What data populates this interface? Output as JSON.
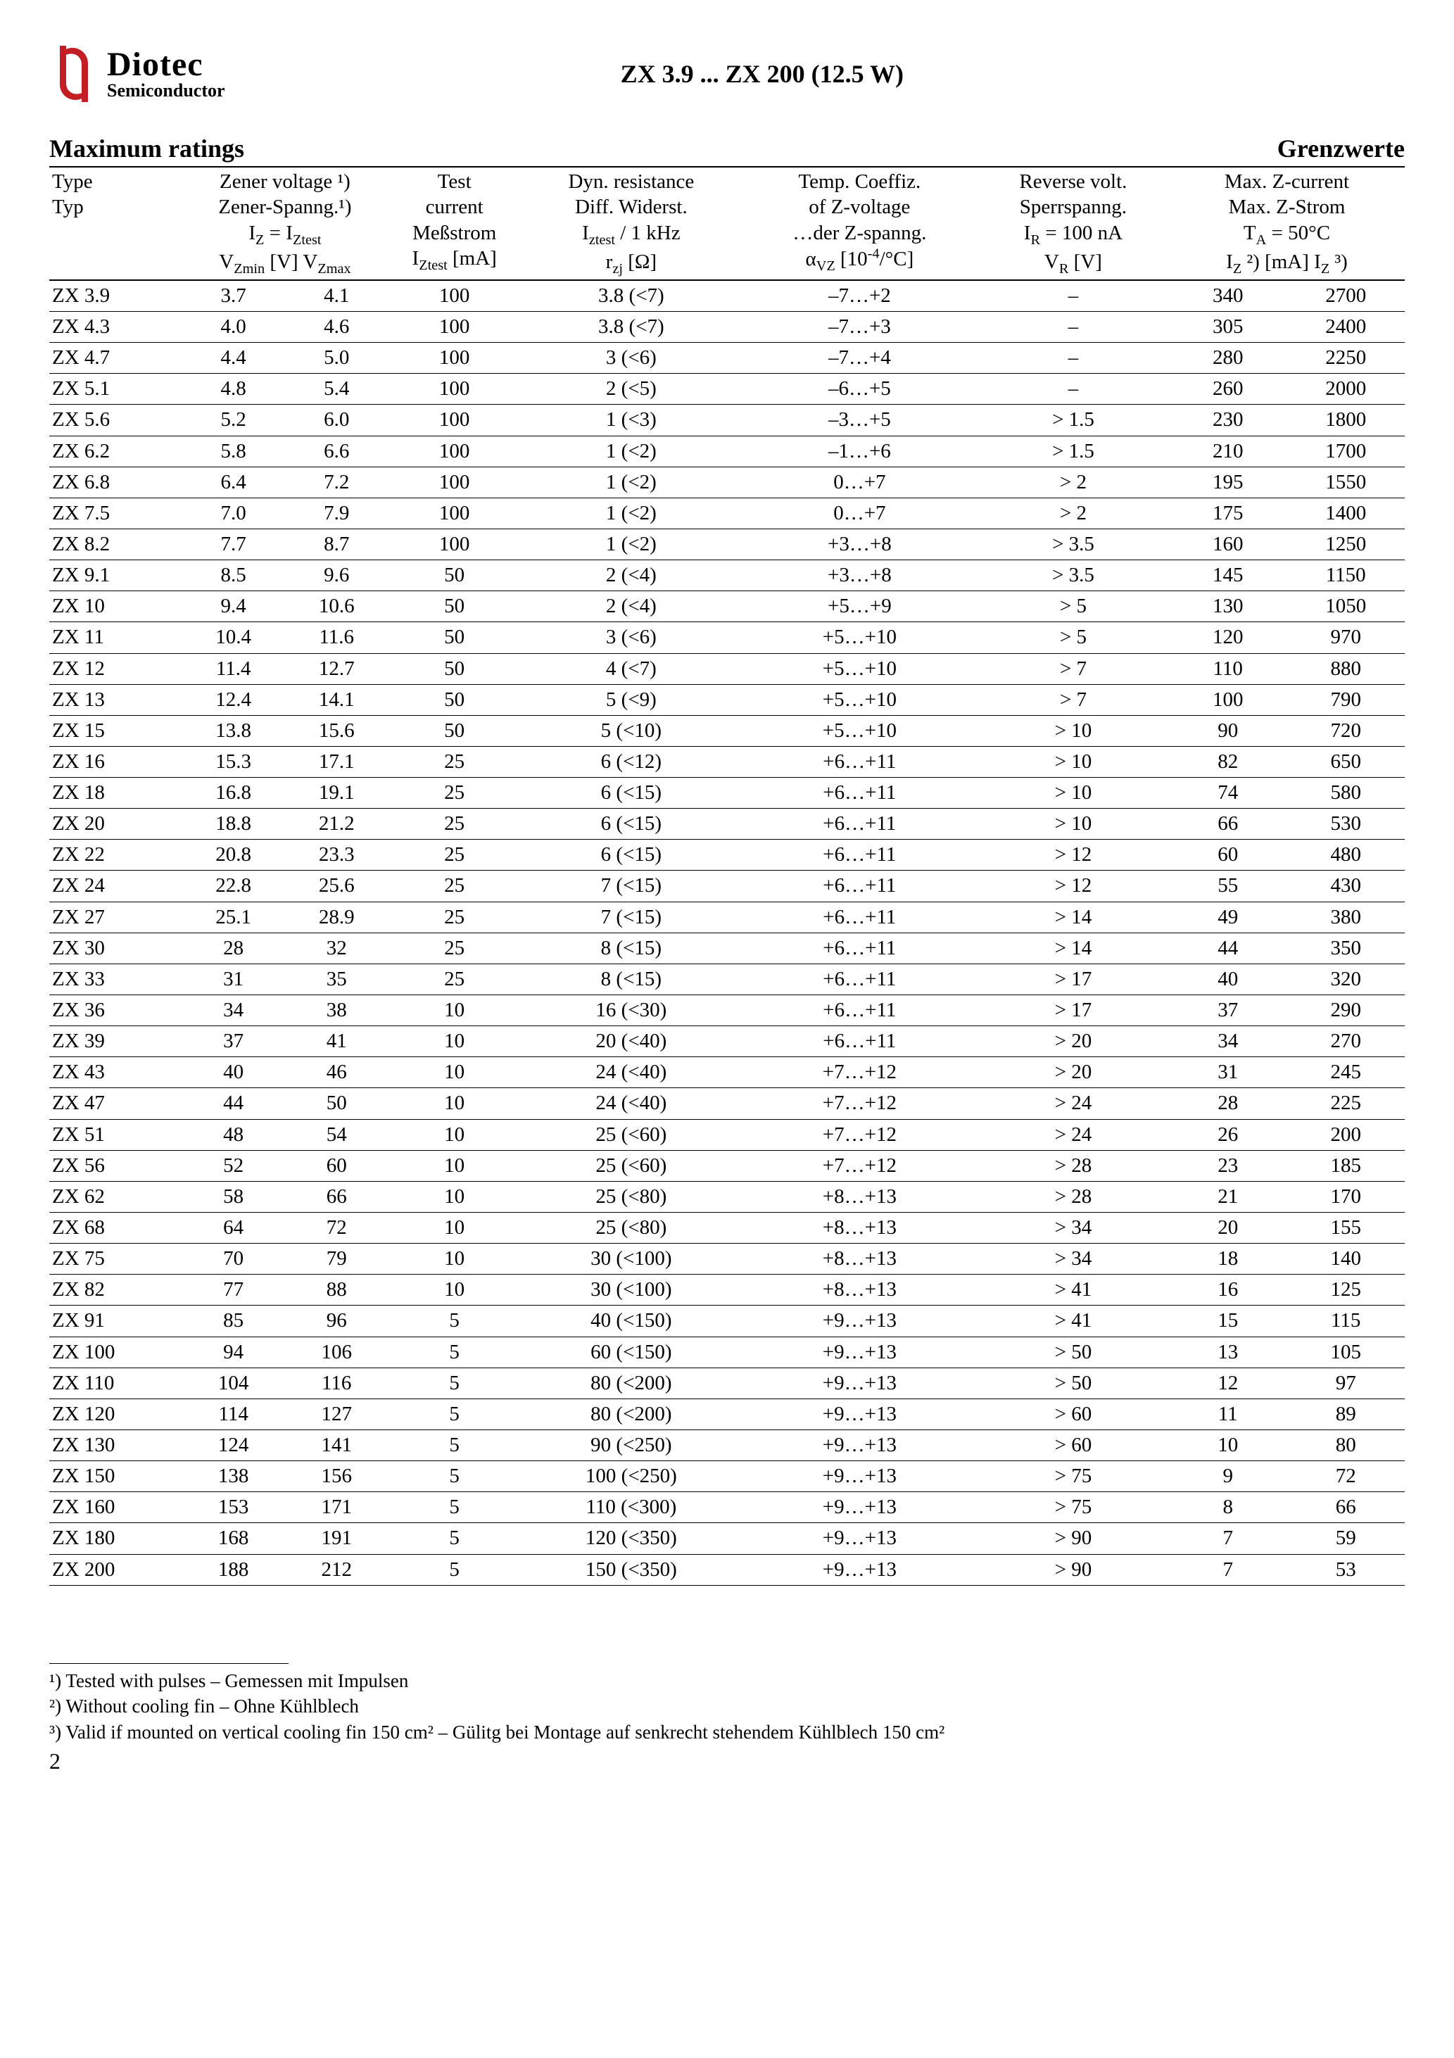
{
  "logo": {
    "brand": "Diotec",
    "sub": "Semiconductor"
  },
  "doc_title": "ZX 3.9 ... ZX 200 (12.5 W)",
  "heading_left": "Maximum ratings",
  "heading_right": "Grenzwerte",
  "header": {
    "type1": "Type",
    "type2": "Typ",
    "zv1": "Zener voltage ¹)",
    "zv2": "Zener-Spanng.¹)",
    "zv3": "I",
    "zv3sub1": "Z",
    "zv3mid": " = I",
    "zv3sub2": "Ztest",
    "zvmin": "V",
    "zvminsub": "Zmin",
    "zvunit": " [V] ",
    "zvmax": "V",
    "zvmaxsub": "Zmax",
    "tc1": "Test",
    "tc2": "current",
    "tc3": "Meßstrom",
    "tc4": "I",
    "tc4sub": "Ztest",
    "tc4unit": " [mA]",
    "dr1": "Dyn. resistance",
    "dr2": "Diff. Widerst.",
    "dr3": "I",
    "dr3sub": "ztest",
    "dr3mid": " / 1 kHz",
    "dr4": "r",
    "dr4sub": "zj",
    "dr4unit": " [Ω]",
    "tco1": "Temp. Coeffiz.",
    "tco2": "of Z-voltage",
    "tco3": "…der Z-spanng.",
    "tco4": "α",
    "tco4sub": "VZ",
    "tco4unit": " [10",
    "tco4exp": "-4",
    "tco4unit2": "/°C]",
    "rv1": "Reverse volt.",
    "rv2": "Sperrspanng.",
    "rv3": "I",
    "rv3sub": "R",
    "rv3mid": " = 100 nA",
    "rv4": "V",
    "rv4sub": "R",
    "rv4unit": " [V]",
    "mz1": "Max. Z-current",
    "mz2": "Max. Z-Strom",
    "mz3": "T",
    "mz3sub": "A",
    "mz3mid": " = 50°C",
    "mz4a": "I",
    "mz4asub": "Z",
    "mz4aexp": " ²)",
    "mz4unit": " [mA] ",
    "mz4b": "I",
    "mz4bsub": "Z",
    "mz4bexp": " ³)"
  },
  "rows": [
    {
      "t": "ZX 3.9",
      "vmin": "3.7",
      "vmax": "4.1",
      "iz": "100",
      "r": "3.8 (<7)",
      "a": "–7…+2",
      "vr": "–",
      "i2": "340",
      "i3": "2700"
    },
    {
      "t": "ZX 4.3",
      "vmin": "4.0",
      "vmax": "4.6",
      "iz": "100",
      "r": "3.8 (<7)",
      "a": "–7…+3",
      "vr": "–",
      "i2": "305",
      "i3": "2400"
    },
    {
      "t": "ZX 4.7",
      "vmin": "4.4",
      "vmax": "5.0",
      "iz": "100",
      "r": "3 (<6)",
      "a": "–7…+4",
      "vr": "–",
      "i2": "280",
      "i3": "2250"
    },
    {
      "t": "ZX 5.1",
      "vmin": "4.8",
      "vmax": "5.4",
      "iz": "100",
      "r": "2 (<5)",
      "a": "–6…+5",
      "vr": "–",
      "i2": "260",
      "i3": "2000"
    },
    {
      "t": "ZX 5.6",
      "vmin": "5.2",
      "vmax": "6.0",
      "iz": "100",
      "r": "1 (<3)",
      "a": "–3…+5",
      "vr": "> 1.5",
      "i2": "230",
      "i3": "1800"
    },
    {
      "t": "ZX 6.2",
      "vmin": "5.8",
      "vmax": "6.6",
      "iz": "100",
      "r": "1 (<2)",
      "a": "–1…+6",
      "vr": "> 1.5",
      "i2": "210",
      "i3": "1700"
    },
    {
      "t": "ZX 6.8",
      "vmin": "6.4",
      "vmax": "7.2",
      "iz": "100",
      "r": "1 (<2)",
      "a": "0…+7",
      "vr": "> 2",
      "i2": "195",
      "i3": "1550"
    },
    {
      "t": "ZX 7.5",
      "vmin": "7.0",
      "vmax": "7.9",
      "iz": "100",
      "r": "1 (<2)",
      "a": "0…+7",
      "vr": "> 2",
      "i2": "175",
      "i3": "1400"
    },
    {
      "t": "ZX 8.2",
      "vmin": "7.7",
      "vmax": "8.7",
      "iz": "100",
      "r": "1 (<2)",
      "a": "+3…+8",
      "vr": "> 3.5",
      "i2": "160",
      "i3": "1250"
    },
    {
      "t": "ZX 9.1",
      "vmin": "8.5",
      "vmax": "9.6",
      "iz": "50",
      "r": "2 (<4)",
      "a": "+3…+8",
      "vr": "> 3.5",
      "i2": "145",
      "i3": "1150"
    },
    {
      "t": "ZX 10",
      "vmin": "9.4",
      "vmax": "10.6",
      "iz": "50",
      "r": "2 (<4)",
      "a": "+5…+9",
      "vr": "> 5",
      "i2": "130",
      "i3": "1050"
    },
    {
      "t": "ZX 11",
      "vmin": "10.4",
      "vmax": "11.6",
      "iz": "50",
      "r": "3 (<6)",
      "a": "+5…+10",
      "vr": "> 5",
      "i2": "120",
      "i3": "970"
    },
    {
      "t": "ZX 12",
      "vmin": "11.4",
      "vmax": "12.7",
      "iz": "50",
      "r": "4 (<7)",
      "a": "+5…+10",
      "vr": "> 7",
      "i2": "110",
      "i3": "880"
    },
    {
      "t": "ZX 13",
      "vmin": "12.4",
      "vmax": "14.1",
      "iz": "50",
      "r": "5 (<9)",
      "a": "+5…+10",
      "vr": "> 7",
      "i2": "100",
      "i3": "790"
    },
    {
      "t": "ZX 15",
      "vmin": "13.8",
      "vmax": "15.6",
      "iz": "50",
      "r": "5 (<10)",
      "a": "+5…+10",
      "vr": "> 10",
      "i2": "90",
      "i3": "720"
    },
    {
      "t": "ZX 16",
      "vmin": "15.3",
      "vmax": "17.1",
      "iz": "25",
      "r": "6 (<12)",
      "a": "+6…+11",
      "vr": "> 10",
      "i2": "82",
      "i3": "650"
    },
    {
      "t": "ZX 18",
      "vmin": "16.8",
      "vmax": "19.1",
      "iz": "25",
      "r": "6 (<15)",
      "a": "+6…+11",
      "vr": "> 10",
      "i2": "74",
      "i3": "580"
    },
    {
      "t": "ZX 20",
      "vmin": "18.8",
      "vmax": "21.2",
      "iz": "25",
      "r": "6 (<15)",
      "a": "+6…+11",
      "vr": "> 10",
      "i2": "66",
      "i3": "530"
    },
    {
      "t": "ZX 22",
      "vmin": "20.8",
      "vmax": "23.3",
      "iz": "25",
      "r": "6 (<15)",
      "a": "+6…+11",
      "vr": "> 12",
      "i2": "60",
      "i3": "480"
    },
    {
      "t": "ZX 24",
      "vmin": "22.8",
      "vmax": "25.6",
      "iz": "25",
      "r": "7 (<15)",
      "a": "+6…+11",
      "vr": "> 12",
      "i2": "55",
      "i3": "430"
    },
    {
      "t": "ZX 27",
      "vmin": "25.1",
      "vmax": "28.9",
      "iz": "25",
      "r": "7 (<15)",
      "a": "+6…+11",
      "vr": "> 14",
      "i2": "49",
      "i3": "380"
    },
    {
      "t": "ZX 30",
      "vmin": "28",
      "vmax": "32",
      "iz": "25",
      "r": "8 (<15)",
      "a": "+6…+11",
      "vr": "> 14",
      "i2": "44",
      "i3": "350"
    },
    {
      "t": "ZX 33",
      "vmin": "31",
      "vmax": "35",
      "iz": "25",
      "r": "8 (<15)",
      "a": "+6…+11",
      "vr": "> 17",
      "i2": "40",
      "i3": "320"
    },
    {
      "t": "ZX 36",
      "vmin": "34",
      "vmax": "38",
      "iz": "10",
      "r": "16 (<30)",
      "a": "+6…+11",
      "vr": "> 17",
      "i2": "37",
      "i3": "290"
    },
    {
      "t": "ZX 39",
      "vmin": "37",
      "vmax": "41",
      "iz": "10",
      "r": "20 (<40)",
      "a": "+6…+11",
      "vr": "> 20",
      "i2": "34",
      "i3": "270"
    },
    {
      "t": "ZX 43",
      "vmin": "40",
      "vmax": "46",
      "iz": "10",
      "r": "24 (<40)",
      "a": "+7…+12",
      "vr": "> 20",
      "i2": "31",
      "i3": "245"
    },
    {
      "t": "ZX 47",
      "vmin": "44",
      "vmax": "50",
      "iz": "10",
      "r": "24 (<40)",
      "a": "+7…+12",
      "vr": "> 24",
      "i2": "28",
      "i3": "225"
    },
    {
      "t": "ZX 51",
      "vmin": "48",
      "vmax": "54",
      "iz": "10",
      "r": "25 (<60)",
      "a": "+7…+12",
      "vr": "> 24",
      "i2": "26",
      "i3": "200"
    },
    {
      "t": "ZX 56",
      "vmin": "52",
      "vmax": "60",
      "iz": "10",
      "r": "25 (<60)",
      "a": "+7…+12",
      "vr": "> 28",
      "i2": "23",
      "i3": "185"
    },
    {
      "t": "ZX 62",
      "vmin": "58",
      "vmax": "66",
      "iz": "10",
      "r": "25 (<80)",
      "a": "+8…+13",
      "vr": "> 28",
      "i2": "21",
      "i3": "170"
    },
    {
      "t": "ZX 68",
      "vmin": "64",
      "vmax": "72",
      "iz": "10",
      "r": "25 (<80)",
      "a": "+8…+13",
      "vr": "> 34",
      "i2": "20",
      "i3": "155"
    },
    {
      "t": "ZX 75",
      "vmin": "70",
      "vmax": "79",
      "iz": "10",
      "r": "30 (<100)",
      "a": "+8…+13",
      "vr": "> 34",
      "i2": "18",
      "i3": "140"
    },
    {
      "t": "ZX 82",
      "vmin": "77",
      "vmax": "88",
      "iz": "10",
      "r": "30 (<100)",
      "a": "+8…+13",
      "vr": "> 41",
      "i2": "16",
      "i3": "125"
    },
    {
      "t": "ZX 91",
      "vmin": "85",
      "vmax": "96",
      "iz": "5",
      "r": "40 (<150)",
      "a": "+9…+13",
      "vr": "> 41",
      "i2": "15",
      "i3": "115"
    },
    {
      "t": "ZX 100",
      "vmin": "94",
      "vmax": "106",
      "iz": "5",
      "r": "60 (<150)",
      "a": "+9…+13",
      "vr": "> 50",
      "i2": "13",
      "i3": "105"
    },
    {
      "t": "ZX 110",
      "vmin": "104",
      "vmax": "116",
      "iz": "5",
      "r": "80 (<200)",
      "a": "+9…+13",
      "vr": "> 50",
      "i2": "12",
      "i3": "97"
    },
    {
      "t": "ZX 120",
      "vmin": "114",
      "vmax": "127",
      "iz": "5",
      "r": "80 (<200)",
      "a": "+9…+13",
      "vr": "> 60",
      "i2": "11",
      "i3": "89"
    },
    {
      "t": "ZX 130",
      "vmin": "124",
      "vmax": "141",
      "iz": "5",
      "r": "90 (<250)",
      "a": "+9…+13",
      "vr": "> 60",
      "i2": "10",
      "i3": "80"
    },
    {
      "t": "ZX 150",
      "vmin": "138",
      "vmax": "156",
      "iz": "5",
      "r": "100 (<250)",
      "a": "+9…+13",
      "vr": "> 75",
      "i2": "9",
      "i3": "72"
    },
    {
      "t": "ZX 160",
      "vmin": "153",
      "vmax": "171",
      "iz": "5",
      "r": "110 (<300)",
      "a": "+9…+13",
      "vr": "> 75",
      "i2": "8",
      "i3": "66"
    },
    {
      "t": "ZX 180",
      "vmin": "168",
      "vmax": "191",
      "iz": "5",
      "r": "120 (<350)",
      "a": "+9…+13",
      "vr": "> 90",
      "i2": "7",
      "i3": "59"
    },
    {
      "t": "ZX 200",
      "vmin": "188",
      "vmax": "212",
      "iz": "5",
      "r": "150 (<350)",
      "a": "+9…+13",
      "vr": "> 90",
      "i2": "7",
      "i3": "53"
    }
  ],
  "footnotes": {
    "f1": "¹)   Tested with pulses – Gemessen mit Impulsen",
    "f2": "²)   Without cooling fin – Ohne Kühlblech",
    "f3": "³)   Valid if mounted on vertical cooling fin 150 cm² – Gülitg bei Montage auf  senkrecht stehendem Kühlblech 150 cm²"
  },
  "page_number": "2"
}
